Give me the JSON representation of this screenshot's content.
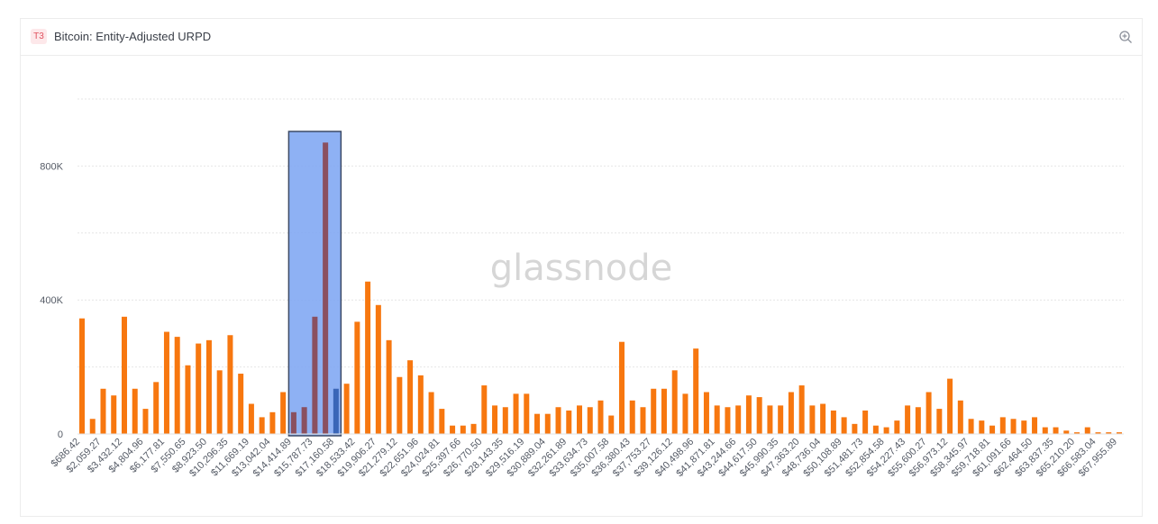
{
  "panel": {
    "tier_badge": "T3",
    "title": "Bitcoin: Entity-Adjusted URPD",
    "zoom_icon": "zoom-in-icon"
  },
  "watermark": "glassnode",
  "colors": {
    "bar": "#f7770f",
    "highlight_fill": "#7ea6f2",
    "highlight_border": "#3c4a66",
    "grid": "#e6e6e6"
  },
  "chart_data": {
    "type": "bar",
    "title": "Bitcoin: Entity-Adjusted URPD",
    "xlabel": "",
    "ylabel": "",
    "ylim": [
      0,
      1000000
    ],
    "y_ticks": [
      {
        "value": 0,
        "label": "0"
      },
      {
        "value": 400000,
        "label": "400K"
      },
      {
        "value": 800000,
        "label": "800K"
      }
    ],
    "grid": true,
    "x_tick_labels": [
      "$686.42",
      "$2,059.27",
      "$3,432.12",
      "$4,804.96",
      "$6,177.81",
      "$7,550.65",
      "$8,923.50",
      "$10,296.35",
      "$11,669.19",
      "$13,042.04",
      "$14,414.89",
      "$15,787.73",
      "$17,160.58",
      "$18,533.42",
      "$19,906.27",
      "$21,279.12",
      "$22,651.96",
      "$24,024.81",
      "$25,397.66",
      "$26,770.50",
      "$28,143.35",
      "$29,516.19",
      "$30,889.04",
      "$32,261.89",
      "$33,634.73",
      "$35,007.58",
      "$36,380.43",
      "$37,753.27",
      "$39,126.12",
      "$40,498.96",
      "$41,871.81",
      "$43,244.66",
      "$44,617.50",
      "$45,990.35",
      "$47,363.20",
      "$48,736.04",
      "$50,108.89",
      "$51,481.73",
      "$52,854.58",
      "$54,227.43",
      "$55,600.27",
      "$56,973.12",
      "$58,345.97",
      "$59,718.81",
      "$61,091.66",
      "$62,464.50",
      "$63,837.35",
      "$65,210.20",
      "$66,583.04",
      "$67,955.89"
    ],
    "values": [
      345000,
      45000,
      135000,
      115000,
      350000,
      135000,
      75000,
      155000,
      305000,
      290000,
      205000,
      270000,
      280000,
      190000,
      295000,
      180000,
      90000,
      50000,
      65000,
      125000,
      65000,
      80000,
      350000,
      870000,
      135000,
      150000,
      335000,
      455000,
      385000,
      280000,
      170000,
      220000,
      175000,
      125000,
      75000,
      25000,
      25000,
      30000,
      145000,
      85000,
      80000,
      120000,
      120000,
      60000,
      60000,
      80000,
      70000,
      85000,
      80000,
      100000,
      55000,
      275000,
      100000,
      80000,
      135000,
      135000,
      190000,
      120000,
      255000,
      125000,
      85000,
      80000,
      85000,
      115000,
      110000,
      85000,
      85000,
      125000,
      145000,
      85000,
      90000,
      70000,
      50000,
      30000,
      70000,
      25000,
      20000,
      40000,
      85000,
      80000,
      125000,
      75000,
      165000,
      100000,
      45000,
      40000,
      25000,
      50000,
      45000,
      40000,
      50000,
      20000,
      20000,
      10000,
      5000,
      20000,
      5000,
      5000,
      5000
    ],
    "highlight": {
      "from_index": 20,
      "to_index": 24
    }
  }
}
